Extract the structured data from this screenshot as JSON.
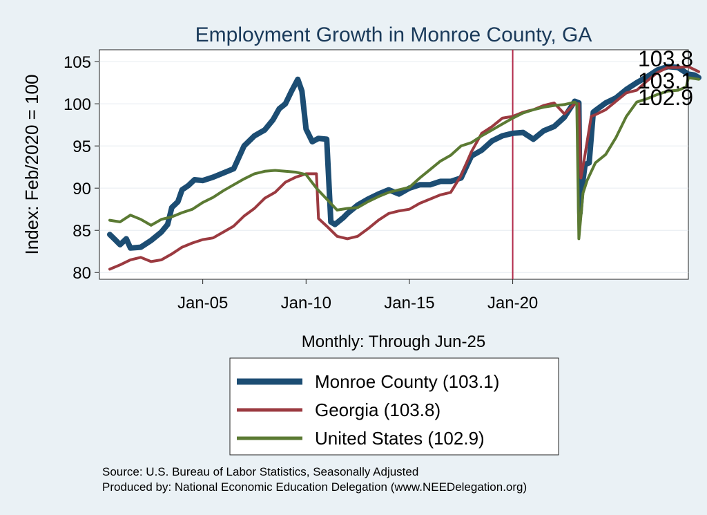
{
  "chart_data": {
    "type": "line",
    "title": "Employment Growth in Monroe  County, GA",
    "xlabel": "Monthly: Through Jun-25",
    "ylabel": "Index: Feb/2020 = 100",
    "xlim": [
      2000.0,
      2028.5
    ],
    "ylim": [
      79.2,
      106.4
    ],
    "x_ticks": [
      {
        "label": "Jan-05",
        "x": 2005.0
      },
      {
        "label": "Jan-10",
        "x": 2010.0
      },
      {
        "label": "Jan-15",
        "x": 2015.0
      },
      {
        "label": "Jan-20",
        "x": 2020.0
      }
    ],
    "y_ticks": [
      80,
      85,
      90,
      95,
      100,
      105
    ],
    "vline": {
      "x": 2020.0,
      "color": "#b22a4a"
    },
    "series": [
      {
        "name": "Monroe  County",
        "legend_label": "Monroe  County (103.1)",
        "color": "#1c4d73",
        "width": 8,
        "end_label": "103.1",
        "points": [
          [
            2000.5,
            84.5
          ],
          [
            2000.8,
            83.8
          ],
          [
            2001.0,
            83.3
          ],
          [
            2001.3,
            84.0
          ],
          [
            2001.5,
            82.9
          ],
          [
            2002.0,
            83.0
          ],
          [
            2002.5,
            83.8
          ],
          [
            2003.0,
            84.8
          ],
          [
            2003.3,
            85.7
          ],
          [
            2003.5,
            87.7
          ],
          [
            2003.8,
            88.4
          ],
          [
            2004.0,
            89.8
          ],
          [
            2004.3,
            90.3
          ],
          [
            2004.6,
            91.0
          ],
          [
            2005.0,
            90.9
          ],
          [
            2005.5,
            91.3
          ],
          [
            2006.0,
            91.8
          ],
          [
            2006.5,
            92.3
          ],
          [
            2007.0,
            95.0
          ],
          [
            2007.5,
            96.2
          ],
          [
            2008.0,
            96.9
          ],
          [
            2008.4,
            98.1
          ],
          [
            2008.7,
            99.4
          ],
          [
            2009.0,
            100.0
          ],
          [
            2009.3,
            101.5
          ],
          [
            2009.6,
            102.9
          ],
          [
            2009.8,
            101.5
          ],
          [
            2010.0,
            97.0
          ],
          [
            2010.3,
            95.5
          ],
          [
            2010.6,
            95.9
          ],
          [
            2011.0,
            95.8
          ],
          [
            2011.2,
            86.0
          ],
          [
            2011.4,
            85.7
          ],
          [
            2011.8,
            86.5
          ],
          [
            2012.0,
            87.0
          ],
          [
            2012.5,
            88.0
          ],
          [
            2013.0,
            88.7
          ],
          [
            2013.5,
            89.3
          ],
          [
            2014.0,
            89.8
          ],
          [
            2014.5,
            89.3
          ],
          [
            2015.0,
            90.0
          ],
          [
            2015.5,
            90.4
          ],
          [
            2016.0,
            90.4
          ],
          [
            2016.5,
            90.8
          ],
          [
            2017.0,
            90.8
          ],
          [
            2017.5,
            91.2
          ],
          [
            2018.0,
            93.8
          ],
          [
            2018.5,
            94.5
          ],
          [
            2019.0,
            95.6
          ],
          [
            2019.5,
            96.2
          ],
          [
            2020.0,
            96.5
          ],
          [
            2020.5,
            96.6
          ],
          [
            2021.0,
            95.8
          ],
          [
            2021.5,
            96.8
          ],
          [
            2022.0,
            97.3
          ],
          [
            2022.5,
            98.4
          ],
          [
            2023.0,
            100.3
          ],
          [
            2023.2,
            100.1
          ],
          [
            2023.25,
            87.0
          ],
          [
            2023.35,
            90.0
          ],
          [
            2023.5,
            92.8
          ],
          [
            2023.7,
            93.0
          ],
          [
            2023.9,
            99.0
          ],
          [
            2024.0,
            99.2
          ],
          [
            2024.5,
            100.1
          ],
          [
            2025.0,
            100.7
          ],
          [
            2025.5,
            101.7
          ],
          [
            2026.0,
            102.5
          ],
          [
            2026.5,
            103.2
          ],
          [
            2027.0,
            104.0
          ],
          [
            2027.5,
            104.4
          ],
          [
            2028.0,
            104.3
          ],
          [
            2028.5,
            103.5
          ],
          [
            2028.8,
            103.4
          ],
          [
            2029.0,
            103.1
          ]
        ]
      },
      {
        "name": "Georgia",
        "legend_label": "Georgia (103.8)",
        "color": "#9b3a40",
        "width": 4,
        "end_label": "103.8",
        "points": [
          [
            2000.5,
            80.4
          ],
          [
            2001.0,
            80.9
          ],
          [
            2001.5,
            81.5
          ],
          [
            2002.0,
            81.8
          ],
          [
            2002.5,
            81.3
          ],
          [
            2003.0,
            81.5
          ],
          [
            2003.5,
            82.2
          ],
          [
            2004.0,
            83.0
          ],
          [
            2004.5,
            83.5
          ],
          [
            2005.0,
            83.9
          ],
          [
            2005.5,
            84.1
          ],
          [
            2006.0,
            84.8
          ],
          [
            2006.5,
            85.5
          ],
          [
            2007.0,
            86.7
          ],
          [
            2007.5,
            87.6
          ],
          [
            2008.0,
            88.8
          ],
          [
            2008.5,
            89.5
          ],
          [
            2009.0,
            90.7
          ],
          [
            2009.5,
            91.3
          ],
          [
            2010.0,
            91.7
          ],
          [
            2010.5,
            91.7
          ],
          [
            2010.6,
            86.4
          ],
          [
            2011.0,
            85.5
          ],
          [
            2011.5,
            84.3
          ],
          [
            2012.0,
            84.0
          ],
          [
            2012.5,
            84.3
          ],
          [
            2013.0,
            85.2
          ],
          [
            2013.5,
            86.2
          ],
          [
            2014.0,
            87.0
          ],
          [
            2014.5,
            87.3
          ],
          [
            2015.0,
            87.5
          ],
          [
            2015.5,
            88.2
          ],
          [
            2016.0,
            88.7
          ],
          [
            2016.5,
            89.2
          ],
          [
            2017.0,
            89.5
          ],
          [
            2017.5,
            91.5
          ],
          [
            2018.0,
            94.3
          ],
          [
            2018.5,
            96.5
          ],
          [
            2019.0,
            97.3
          ],
          [
            2019.5,
            98.3
          ],
          [
            2020.0,
            98.5
          ],
          [
            2020.5,
            99.0
          ],
          [
            2021.0,
            99.3
          ],
          [
            2021.5,
            99.8
          ],
          [
            2022.0,
            100.1
          ],
          [
            2022.5,
            98.8
          ],
          [
            2023.0,
            100.0
          ],
          [
            2023.2,
            100.0
          ],
          [
            2023.3,
            91.2
          ],
          [
            2023.5,
            94.0
          ],
          [
            2023.8,
            98.5
          ],
          [
            2024.0,
            98.7
          ],
          [
            2024.5,
            99.3
          ],
          [
            2025.0,
            100.3
          ],
          [
            2025.5,
            101.3
          ],
          [
            2026.0,
            101.6
          ],
          [
            2026.5,
            102.7
          ],
          [
            2027.0,
            103.7
          ],
          [
            2027.5,
            104.3
          ],
          [
            2028.0,
            104.3
          ],
          [
            2028.5,
            104.4
          ],
          [
            2029.0,
            103.8
          ]
        ]
      },
      {
        "name": "United States",
        "legend_label": "United States (102.9)",
        "color": "#5b7a33",
        "width": 4,
        "end_label": "102.9",
        "points": [
          [
            2000.5,
            86.2
          ],
          [
            2001.0,
            86.0
          ],
          [
            2001.5,
            86.8
          ],
          [
            2002.0,
            86.3
          ],
          [
            2002.5,
            85.6
          ],
          [
            2003.0,
            86.3
          ],
          [
            2003.5,
            86.6
          ],
          [
            2004.0,
            87.1
          ],
          [
            2004.5,
            87.5
          ],
          [
            2005.0,
            88.3
          ],
          [
            2005.5,
            88.9
          ],
          [
            2006.0,
            89.7
          ],
          [
            2006.5,
            90.4
          ],
          [
            2007.0,
            91.1
          ],
          [
            2007.5,
            91.7
          ],
          [
            2008.0,
            92.0
          ],
          [
            2008.5,
            92.1
          ],
          [
            2009.0,
            92.0
          ],
          [
            2009.5,
            91.9
          ],
          [
            2010.0,
            91.6
          ],
          [
            2010.5,
            90.0
          ],
          [
            2011.0,
            88.7
          ],
          [
            2011.5,
            87.4
          ],
          [
            2012.0,
            87.6
          ],
          [
            2012.5,
            87.7
          ],
          [
            2013.0,
            88.4
          ],
          [
            2013.5,
            89.0
          ],
          [
            2014.0,
            89.5
          ],
          [
            2014.5,
            89.8
          ],
          [
            2015.0,
            90.1
          ],
          [
            2015.5,
            91.2
          ],
          [
            2016.0,
            92.2
          ],
          [
            2016.5,
            93.2
          ],
          [
            2017.0,
            93.9
          ],
          [
            2017.5,
            95.0
          ],
          [
            2018.0,
            95.4
          ],
          [
            2018.5,
            96.2
          ],
          [
            2019.0,
            96.9
          ],
          [
            2019.5,
            97.6
          ],
          [
            2020.0,
            98.3
          ],
          [
            2020.5,
            98.9
          ],
          [
            2021.0,
            99.3
          ],
          [
            2021.5,
            99.6
          ],
          [
            2022.0,
            99.8
          ],
          [
            2022.5,
            99.9
          ],
          [
            2023.0,
            100.2
          ],
          [
            2023.1,
            100.0
          ],
          [
            2023.2,
            84.0
          ],
          [
            2023.4,
            89.4
          ],
          [
            2023.6,
            90.9
          ],
          [
            2024.0,
            93.0
          ],
          [
            2024.5,
            94.0
          ],
          [
            2025.0,
            96.0
          ],
          [
            2025.5,
            98.5
          ],
          [
            2026.0,
            100.2
          ],
          [
            2026.5,
            100.6
          ],
          [
            2027.0,
            101.1
          ],
          [
            2027.5,
            101.5
          ],
          [
            2028.0,
            101.6
          ],
          [
            2028.4,
            102.0
          ],
          [
            2028.5,
            103.1
          ],
          [
            2029.0,
            102.9
          ]
        ]
      }
    ],
    "end_labels_order": [
      "103.8",
      "103.1",
      "102.9"
    ]
  },
  "footer": {
    "source": "Source: U.S. Bureau of Labor Statistics, Seasonally Adjusted",
    "produced": "Produced by: National Economic Education Delegation (www.NEEDelegation.org)"
  }
}
